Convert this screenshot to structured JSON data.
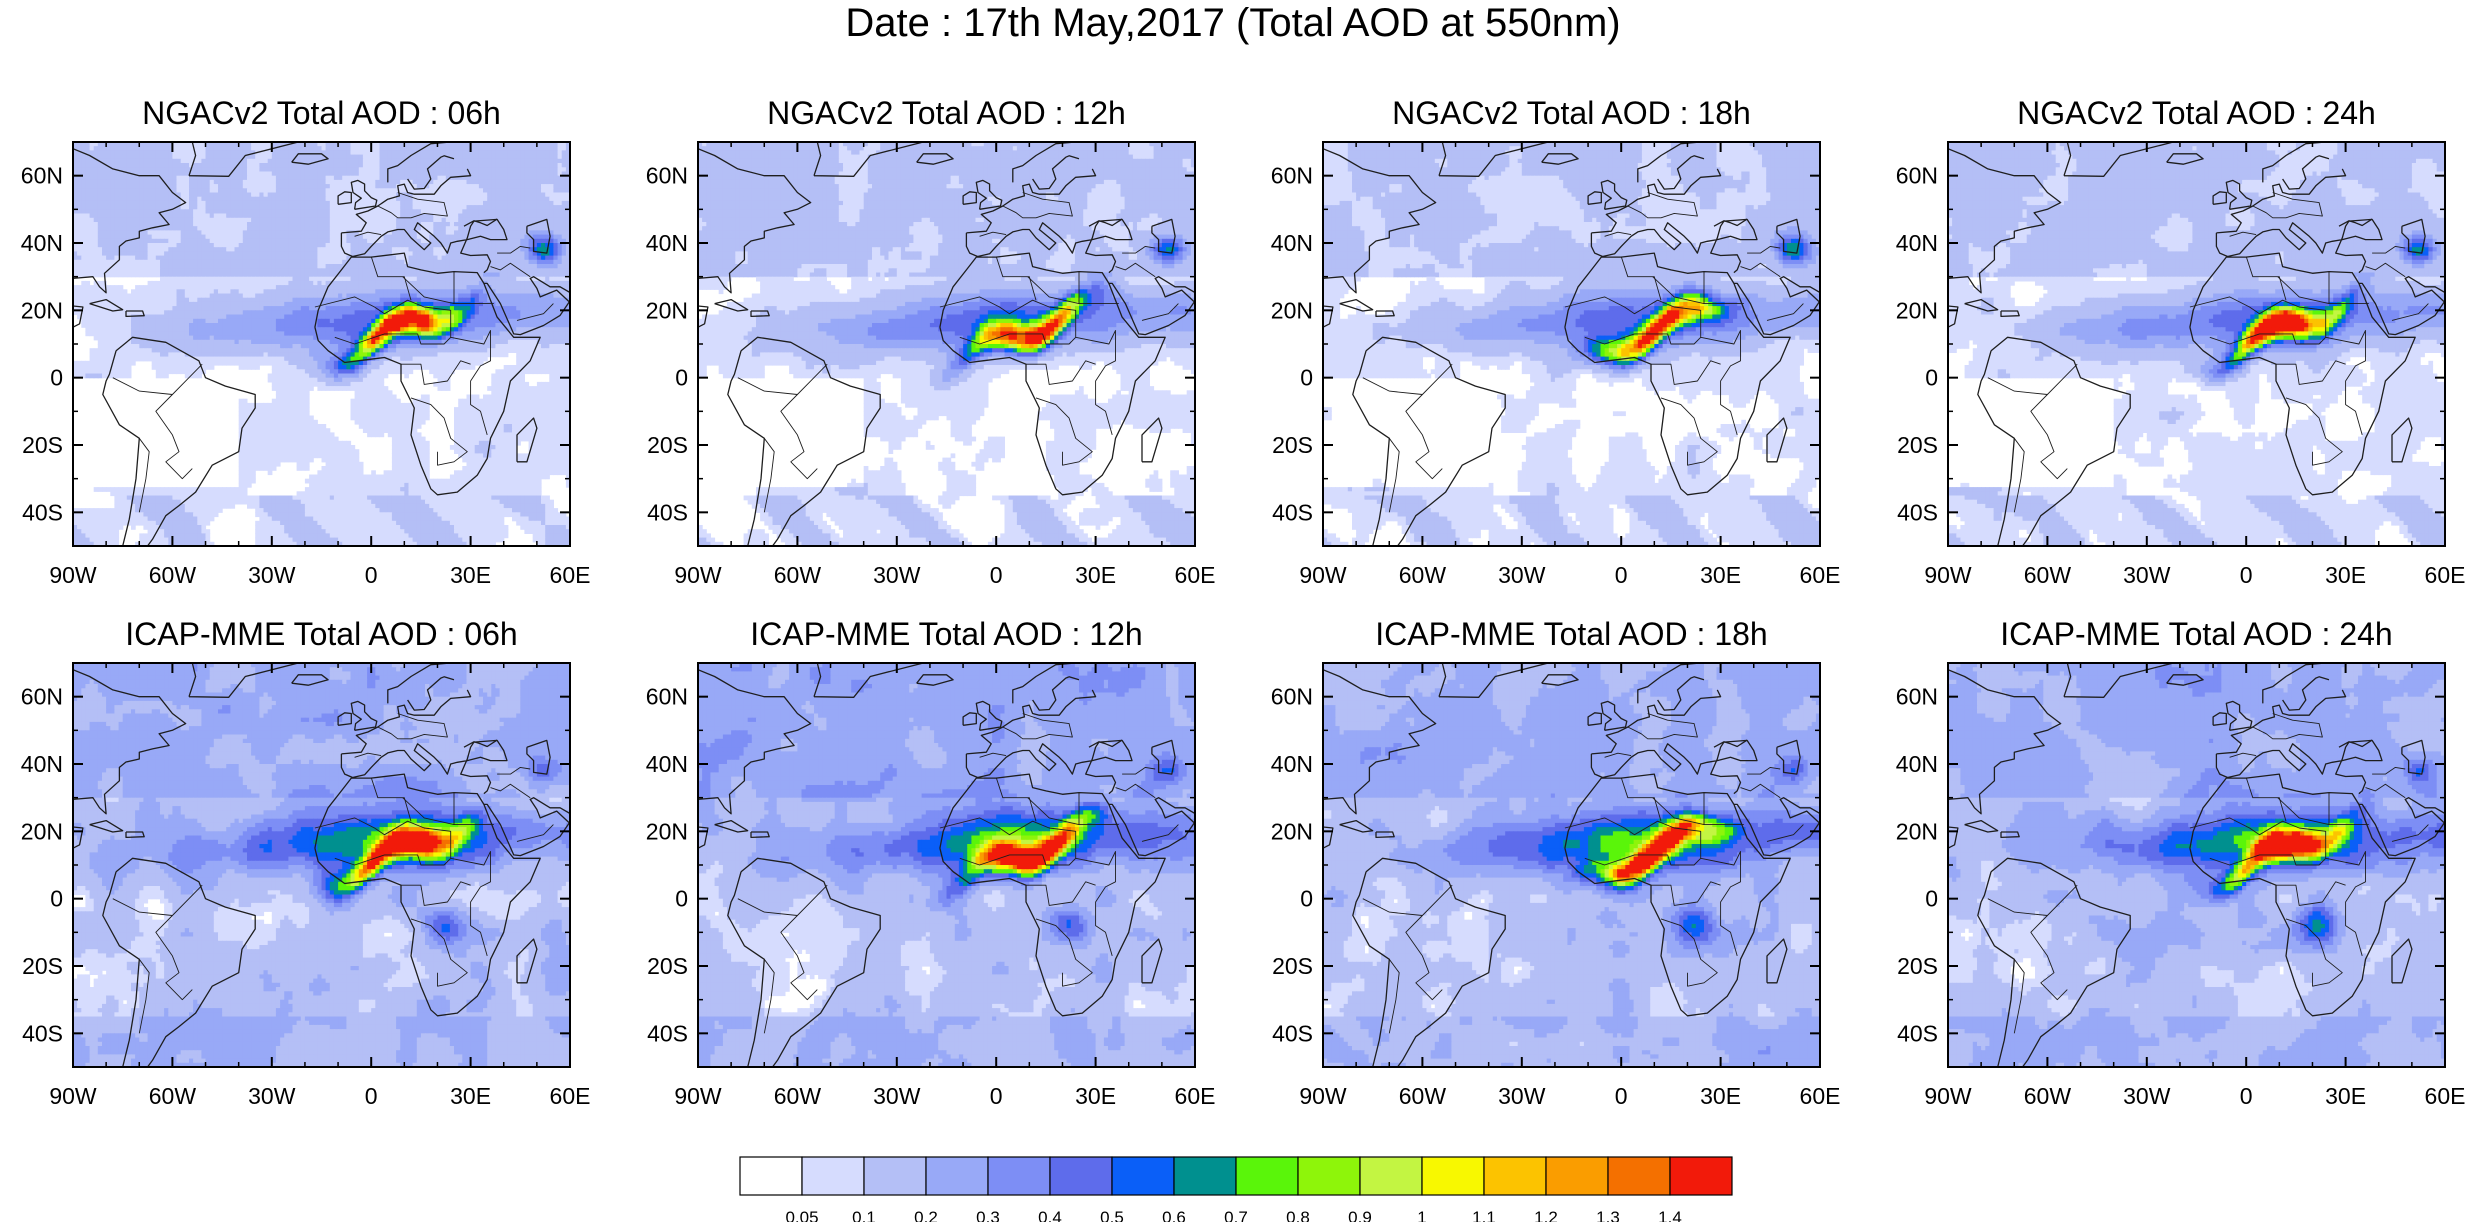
{
  "title": "Date : 17th May,2017 (Total AOD at 550nm)",
  "chart_data": {
    "type": "heatmap",
    "title": "Date : 17th May,2017 (Total AOD at 550nm)",
    "lon_ticks": [
      "90W",
      "60W",
      "30W",
      "0",
      "30E",
      "60E"
    ],
    "lat_ticks": [
      "60N",
      "40N",
      "20N",
      "0",
      "20S",
      "40S"
    ],
    "xlim": [
      -90,
      60
    ],
    "ylim": [
      -50,
      70
    ],
    "grid": false,
    "colorbar": {
      "levels": [
        "0.05",
        "0.1",
        "0.2",
        "0.3",
        "0.4",
        "0.5",
        "0.6",
        "0.7",
        "0.8",
        "0.9",
        "1",
        "1.1",
        "1.2",
        "1.3",
        "1.4"
      ],
      "colors": [
        "#ffffff",
        "#d6dcfe",
        "#b4bff6",
        "#98a9f7",
        "#7d8ef5",
        "#5e6ceb",
        "#0a5ff8",
        "#00908f",
        "#5af50a",
        "#8ef50a",
        "#c3f542",
        "#f8f800",
        "#fcc300",
        "#fa9d00",
        "#f47000",
        "#f21a0a"
      ]
    },
    "panels": [
      {
        "title": "NGACv2 Total AOD : 06h",
        "model": "NGACv2",
        "hour": 6,
        "dust_peak_aod": 1.4
      },
      {
        "title": "NGACv2 Total AOD : 12h",
        "model": "NGACv2",
        "hour": 12,
        "dust_peak_aod": 1.4
      },
      {
        "title": "NGACv2 Total AOD : 18h",
        "model": "NGACv2",
        "hour": 18,
        "dust_peak_aod": 1.4
      },
      {
        "title": "NGACv2 Total AOD : 24h",
        "model": "NGACv2",
        "hour": 24,
        "dust_peak_aod": 1.4
      },
      {
        "title": "ICAP-MME Total AOD : 06h",
        "model": "ICAP-MME",
        "hour": 6,
        "dust_peak_aod": 1.4
      },
      {
        "title": "ICAP-MME Total AOD : 12h",
        "model": "ICAP-MME",
        "hour": 12,
        "dust_peak_aod": 1.4
      },
      {
        "title": "ICAP-MME Total AOD : 18h",
        "model": "ICAP-MME",
        "hour": 18,
        "dust_peak_aod": 1.4
      },
      {
        "title": "ICAP-MME Total AOD : 24h",
        "model": "ICAP-MME",
        "hour": 24,
        "dust_peak_aod": 1.4
      }
    ]
  }
}
